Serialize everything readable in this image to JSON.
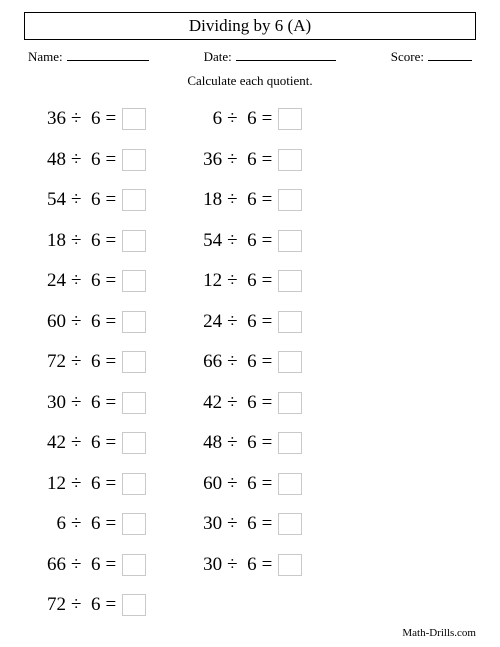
{
  "title": "Dividing by 6 (A)",
  "labels": {
    "name": "Name:",
    "date": "Date:",
    "score": "Score:"
  },
  "instruction": "Calculate each quotient.",
  "underline_widths": {
    "name": 82,
    "date": 100,
    "score": 44
  },
  "layout": {
    "background_color": "#ffffff",
    "text_color": "#000000",
    "answer_box_border": "#c9c9c9",
    "title_font_size": 17,
    "problem_font_size": 19,
    "info_font_size": 13,
    "row_height": 40.5,
    "answer_box_w": 24,
    "answer_box_h": 22
  },
  "division_sign": "÷",
  "equals_sign": "=",
  "footer": "Math-Drills.com",
  "columns": [
    [
      {
        "dividend": 36,
        "divisor": 6
      },
      {
        "dividend": 48,
        "divisor": 6
      },
      {
        "dividend": 54,
        "divisor": 6
      },
      {
        "dividend": 18,
        "divisor": 6
      },
      {
        "dividend": 24,
        "divisor": 6
      },
      {
        "dividend": 60,
        "divisor": 6
      },
      {
        "dividend": 72,
        "divisor": 6
      },
      {
        "dividend": 30,
        "divisor": 6
      },
      {
        "dividend": 42,
        "divisor": 6
      },
      {
        "dividend": 12,
        "divisor": 6
      },
      {
        "dividend": 6,
        "divisor": 6
      },
      {
        "dividend": 66,
        "divisor": 6
      },
      {
        "dividend": 72,
        "divisor": 6
      }
    ],
    [
      {
        "dividend": 6,
        "divisor": 6
      },
      {
        "dividend": 36,
        "divisor": 6
      },
      {
        "dividend": 18,
        "divisor": 6
      },
      {
        "dividend": 54,
        "divisor": 6
      },
      {
        "dividend": 12,
        "divisor": 6
      },
      {
        "dividend": 24,
        "divisor": 6
      },
      {
        "dividend": 66,
        "divisor": 6
      },
      {
        "dividend": 42,
        "divisor": 6
      },
      {
        "dividend": 48,
        "divisor": 6
      },
      {
        "dividend": 60,
        "divisor": 6
      },
      {
        "dividend": 30,
        "divisor": 6
      },
      {
        "dividend": 30,
        "divisor": 6
      }
    ]
  ]
}
